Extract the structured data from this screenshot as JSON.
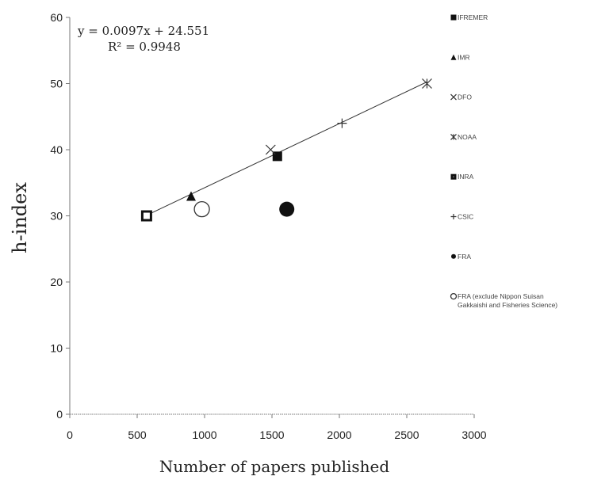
{
  "chart_data": {
    "type": "scatter",
    "xlabel": "Number of papers published",
    "ylabel": "h-index",
    "xlim": [
      0,
      3000
    ],
    "ylim": [
      0,
      60
    ],
    "xticks": [
      0,
      500,
      1000,
      1500,
      2000,
      2500,
      3000
    ],
    "yticks": [
      0,
      10,
      20,
      30,
      40,
      50,
      60
    ],
    "grid": false,
    "legend_position": "right",
    "series": [
      {
        "name": "IFREMER",
        "marker": "square-filled",
        "x": [
          1540
        ],
        "y": [
          39
        ]
      },
      {
        "name": "IMR",
        "marker": "triangle-filled",
        "x": [
          900
        ],
        "y": [
          33
        ]
      },
      {
        "name": "DFO",
        "marker": "x",
        "x": [
          1490
        ],
        "y": [
          40
        ]
      },
      {
        "name": "NOAA",
        "marker": "asterisk",
        "x": [
          2650
        ],
        "y": [
          50
        ]
      },
      {
        "name": "INRA",
        "marker": "square-open",
        "x": [
          570
        ],
        "y": [
          30
        ]
      },
      {
        "name": "CSIC",
        "marker": "plus",
        "x": [
          2020
        ],
        "y": [
          44
        ]
      },
      {
        "name": "FRA",
        "marker": "circle-filled",
        "x": [
          1610
        ],
        "y": [
          31
        ]
      },
      {
        "name": "FRA (exclude Nippon Suisan Gakkaishi and Fisheries Science)",
        "marker": "circle-open",
        "x": [
          980
        ],
        "y": [
          31
        ]
      }
    ],
    "trendline": {
      "slope": 0.0097,
      "intercept": 24.551,
      "x_range": [
        570,
        2650
      ],
      "equation": "y = 0.0097x + 24.551",
      "r2": "R² = 0.9948"
    }
  }
}
